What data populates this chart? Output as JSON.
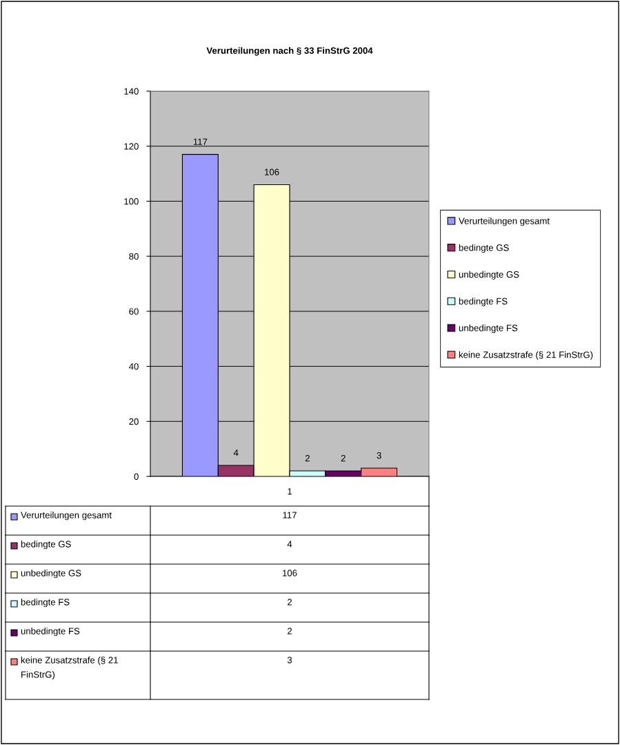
{
  "chart_data": {
    "type": "bar",
    "title": "Verurteilungen nach § 33 FinStrG 2004",
    "categories": [
      "1"
    ],
    "series": [
      {
        "name": "Verurteilungen gesamt",
        "color": "#9999ff",
        "values": [
          117
        ],
        "value_labels": [
          "117"
        ]
      },
      {
        "name": "bedingte GS",
        "color": "#993366",
        "values": [
          4
        ],
        "value_labels": [
          "4"
        ]
      },
      {
        "name": "unbedingte GS",
        "color": "#ffffcc",
        "values": [
          106
        ],
        "value_labels": [
          "106"
        ]
      },
      {
        "name": "bedingte FS",
        "color": "#ccffff",
        "values": [
          2
        ],
        "value_labels": [
          "2"
        ]
      },
      {
        "name": "unbedingte FS",
        "color": "#660066",
        "values": [
          2
        ],
        "value_labels": [
          "2"
        ]
      },
      {
        "name": "keine Zusatzstrafe (§ 21 FinStrG)",
        "color": "#ff8080",
        "values": [
          3
        ],
        "value_labels": [
          "3"
        ]
      }
    ],
    "ylim": [
      0,
      140
    ],
    "yticks": [
      0,
      20,
      40,
      60,
      80,
      100,
      120,
      140
    ],
    "grid": "y",
    "legend": "right",
    "annotations": [
      "117",
      "4",
      "106",
      "2",
      "2",
      "3"
    ]
  }
}
